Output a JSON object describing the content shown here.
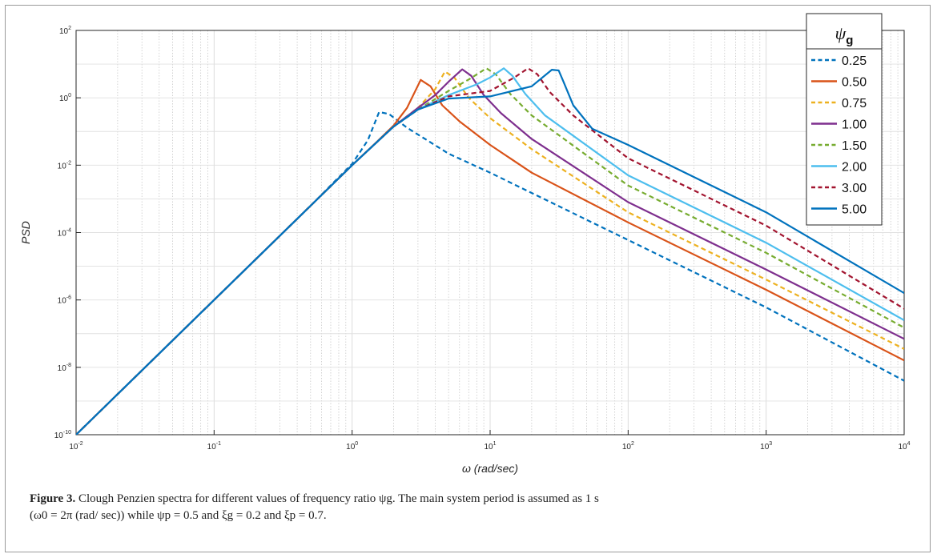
{
  "chart_data": {
    "type": "line",
    "xscale": "log",
    "yscale": "log",
    "xlim": [
      0.01,
      10000
    ],
    "ylim": [
      1e-10,
      100
    ],
    "xlabel": "ω (rad/sec)",
    "ylabel": "PSD",
    "grid": true,
    "legend_position": "top-right",
    "legend_title": "ψg",
    "x_ticks": [
      {
        "value": 0.01,
        "base": "10",
        "exp": "-2"
      },
      {
        "value": 0.1,
        "base": "10",
        "exp": "-1"
      },
      {
        "value": 1,
        "base": "10",
        "exp": "0"
      },
      {
        "value": 10,
        "base": "10",
        "exp": "1"
      },
      {
        "value": 100,
        "base": "10",
        "exp": "2"
      },
      {
        "value": 1000,
        "base": "10",
        "exp": "3"
      },
      {
        "value": 10000,
        "base": "10",
        "exp": "4"
      }
    ],
    "y_ticks": [
      {
        "value": 1e-10,
        "base": "10",
        "exp": "-10"
      },
      {
        "value": 1e-08,
        "base": "10",
        "exp": "-8"
      },
      {
        "value": 1e-06,
        "base": "10",
        "exp": "-6"
      },
      {
        "value": 0.0001,
        "base": "10",
        "exp": "-4"
      },
      {
        "value": 0.01,
        "base": "10",
        "exp": "-2"
      },
      {
        "value": 1,
        "base": "10",
        "exp": "0"
      },
      {
        "value": 100,
        "base": "10",
        "exp": "2"
      }
    ],
    "series": [
      {
        "name": "0.25",
        "color": "#0072BD",
        "dashed": true,
        "x": [
          0.01,
          0.1,
          0.5,
          1,
          1.3,
          1.57,
          1.85,
          2.5,
          5,
          10,
          100,
          1000,
          10000
        ],
        "y": [
          1e-10,
          1e-06,
          0.000625,
          0.011,
          0.055,
          0.38,
          0.33,
          0.13,
          0.022,
          0.006,
          6e-05,
          6e-07,
          4e-09
        ]
      },
      {
        "name": "0.50",
        "color": "#D95319",
        "dashed": false,
        "x": [
          0.01,
          0.1,
          0.5,
          1,
          1.5,
          2,
          2.5,
          3.14,
          3.7,
          4.5,
          6,
          10,
          20,
          100,
          1000,
          10000
        ],
        "y": [
          1e-10,
          1e-06,
          0.000625,
          0.01,
          0.048,
          0.15,
          0.5,
          3.4,
          2.2,
          0.6,
          0.2,
          0.04,
          0.006,
          0.0002,
          2e-06,
          1.6e-08
        ]
      },
      {
        "name": "0.75",
        "color": "#EDB120",
        "dashed": true,
        "x": [
          0.01,
          0.1,
          0.5,
          1,
          2,
          3,
          4,
          4.7,
          5.5,
          7,
          10,
          20,
          100,
          1000,
          10000
        ],
        "y": [
          1e-10,
          1e-06,
          0.000625,
          0.01,
          0.14,
          0.5,
          1.8,
          6,
          4,
          1,
          0.25,
          0.03,
          0.0004,
          4e-06,
          3.5e-08
        ]
      },
      {
        "name": "1.00",
        "color": "#7E2F8E",
        "dashed": false,
        "x": [
          0.01,
          0.1,
          0.5,
          1,
          2,
          3,
          4,
          5,
          6.28,
          7.3,
          9,
          12,
          20,
          100,
          1000,
          10000
        ],
        "y": [
          1e-10,
          1e-06,
          0.000625,
          0.01,
          0.14,
          0.5,
          1.2,
          3,
          7,
          4.5,
          1.2,
          0.35,
          0.06,
          0.0008,
          8e-06,
          7e-08
        ]
      },
      {
        "name": "1.50",
        "color": "#77AC30",
        "dashed": true,
        "x": [
          0.01,
          0.1,
          0.5,
          1,
          2,
          3,
          5,
          7,
          9.4,
          11,
          14,
          20,
          100,
          1000,
          10000
        ],
        "y": [
          1e-10,
          1e-06,
          0.000625,
          0.01,
          0.14,
          0.45,
          1.6,
          3.5,
          7.5,
          5,
          1.3,
          0.3,
          0.0025,
          2.5e-05,
          1.5e-07
        ]
      },
      {
        "name": "2.00",
        "color": "#4DBEEE",
        "dashed": false,
        "x": [
          0.01,
          0.1,
          0.5,
          1,
          2,
          3,
          5,
          8,
          10,
          12.57,
          14.5,
          18,
          25,
          100,
          1000,
          10000
        ],
        "y": [
          1e-10,
          1e-06,
          0.000625,
          0.01,
          0.14,
          0.45,
          1.2,
          2.5,
          4,
          7.5,
          4.5,
          1.3,
          0.3,
          0.005,
          5e-05,
          2.5e-07
        ]
      },
      {
        "name": "3.00",
        "color": "#A2142F",
        "dashed": true,
        "x": [
          0.01,
          0.1,
          0.5,
          1,
          2,
          3,
          5,
          10,
          15,
          18.85,
          22,
          27,
          40,
          100,
          1000,
          10000
        ],
        "y": [
          1e-10,
          1e-06,
          0.000625,
          0.01,
          0.14,
          0.45,
          1.1,
          1.6,
          4,
          7.5,
          5,
          1.5,
          0.3,
          0.016,
          0.00016,
          5.5e-07
        ]
      },
      {
        "name": "5.00",
        "color": "#0072BD",
        "dashed": false,
        "x": [
          0.01,
          0.1,
          0.5,
          1,
          2,
          3,
          5,
          10,
          20,
          28,
          31.4,
          34,
          40,
          55,
          100,
          1000,
          10000
        ],
        "y": [
          1e-10,
          1e-06,
          0.000625,
          0.01,
          0.14,
          0.45,
          0.95,
          1.1,
          2.2,
          6.8,
          6.5,
          3,
          0.6,
          0.12,
          0.04,
          0.0004,
          1.6e-06
        ]
      }
    ]
  },
  "caption": {
    "label": "Figure 3.",
    "line1": "Clough Penzien spectra for different values of frequency ratio ψg. The main system period is assumed as 1 s",
    "line2": "(ω0 = 2π (rad/ sec)) while ψp = 0.5 and ξg = 0.2 and ξp = 0.7."
  }
}
